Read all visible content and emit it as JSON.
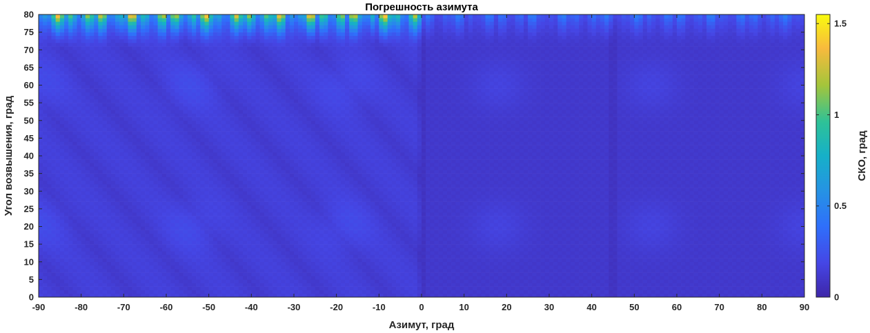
{
  "chart_data": {
    "type": "heatmap",
    "title": "Погрешность азимута",
    "xlabel": "Азимут, град",
    "ylabel": "Угол возвышения, град",
    "colorbar_label": "СКО, град",
    "xlim": [
      -90,
      90
    ],
    "ylim": [
      0,
      80
    ],
    "clim": [
      0,
      1.55
    ],
    "x_ticks": [
      -90,
      -80,
      -70,
      -60,
      -50,
      -40,
      -30,
      -20,
      -10,
      0,
      10,
      20,
      30,
      40,
      50,
      60,
      70,
      80,
      90
    ],
    "y_ticks": [
      0,
      5,
      10,
      15,
      20,
      25,
      30,
      35,
      40,
      45,
      50,
      55,
      60,
      65,
      70,
      75,
      80
    ],
    "colorbar_ticks": [
      {
        "value": 0,
        "label": "0"
      },
      {
        "value": 0.5,
        "label": "0.5"
      },
      {
        "value": 1,
        "label": "1"
      },
      {
        "value": 1.5,
        "label": "1.5"
      }
    ],
    "colormap": "parula",
    "grid": false,
    "summary": {
      "typical_value": 0.15,
      "min_value": 0.05,
      "max_value": 1.55
    }
  }
}
